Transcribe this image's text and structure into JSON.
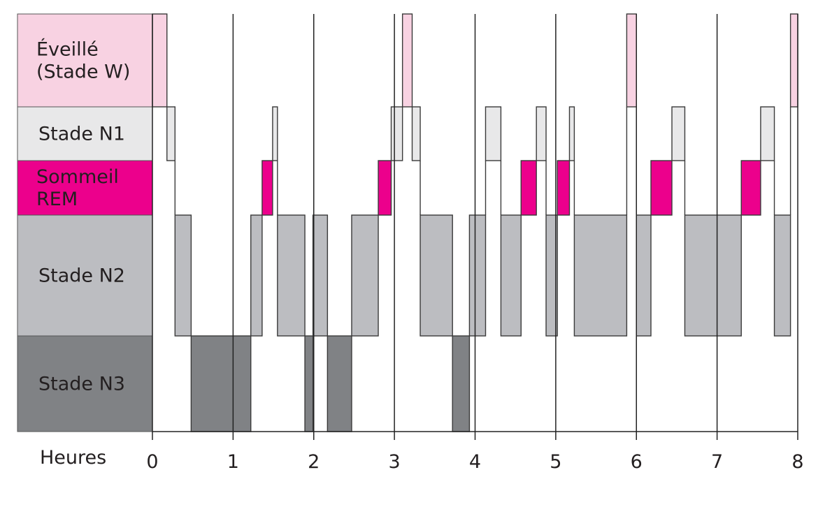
{
  "chart_data": {
    "type": "hypnogram",
    "xlabel": "Heures",
    "xlim": [
      0,
      8
    ],
    "x_ticks": [
      "0",
      "1",
      "2",
      "3",
      "4",
      "5",
      "6",
      "7",
      "8"
    ],
    "grid": "vertical lines at each hour",
    "stages": [
      {
        "id": "W",
        "label_lines": [
          "Éveillé",
          "(Stade W)"
        ],
        "color": "#f8d2e2"
      },
      {
        "id": "N1",
        "label_lines": [
          "Stade N1"
        ],
        "color": "#e8e8e9"
      },
      {
        "id": "REM",
        "label_lines": [
          "Sommeil",
          "REM"
        ],
        "color": "#ec008c"
      },
      {
        "id": "N2",
        "label_lines": [
          "Stade N2"
        ],
        "color": "#bcbdc1"
      },
      {
        "id": "N3",
        "label_lines": [
          "Stade N3"
        ],
        "color": "#808285"
      }
    ],
    "segments": [
      {
        "stage": "W",
        "start": 0.0,
        "end": 0.18
      },
      {
        "stage": "N1",
        "start": 0.18,
        "end": 0.28
      },
      {
        "stage": "N2",
        "start": 0.28,
        "end": 0.48
      },
      {
        "stage": "N3",
        "start": 0.48,
        "end": 1.22
      },
      {
        "stage": "N2",
        "start": 1.22,
        "end": 1.36
      },
      {
        "stage": "REM",
        "start": 1.36,
        "end": 1.49
      },
      {
        "stage": "N1",
        "start": 1.49,
        "end": 1.55
      },
      {
        "stage": "N2",
        "start": 1.55,
        "end": 1.89
      },
      {
        "stage": "N3",
        "start": 1.89,
        "end": 1.99
      },
      {
        "stage": "N2",
        "start": 1.99,
        "end": 2.17
      },
      {
        "stage": "N3",
        "start": 2.17,
        "end": 2.47
      },
      {
        "stage": "N2",
        "start": 2.47,
        "end": 2.8
      },
      {
        "stage": "REM",
        "start": 2.8,
        "end": 2.96
      },
      {
        "stage": "N1",
        "start": 2.96,
        "end": 3.1
      },
      {
        "stage": "W",
        "start": 3.1,
        "end": 3.22
      },
      {
        "stage": "N1",
        "start": 3.22,
        "end": 3.32
      },
      {
        "stage": "N2",
        "start": 3.32,
        "end": 3.72
      },
      {
        "stage": "N3",
        "start": 3.72,
        "end": 3.93
      },
      {
        "stage": "N2",
        "start": 3.93,
        "end": 4.13
      },
      {
        "stage": "N1",
        "start": 4.13,
        "end": 4.32
      },
      {
        "stage": "N2",
        "start": 4.32,
        "end": 4.57
      },
      {
        "stage": "REM",
        "start": 4.57,
        "end": 4.76
      },
      {
        "stage": "N1",
        "start": 4.76,
        "end": 4.88
      },
      {
        "stage": "N2",
        "start": 4.88,
        "end": 5.02
      },
      {
        "stage": "REM",
        "start": 5.02,
        "end": 5.17
      },
      {
        "stage": "N1",
        "start": 5.17,
        "end": 5.23
      },
      {
        "stage": "N2",
        "start": 5.23,
        "end": 5.88
      },
      {
        "stage": "W",
        "start": 5.88,
        "end": 6.0
      },
      {
        "stage": "N2",
        "start": 6.0,
        "end": 6.18
      },
      {
        "stage": "REM",
        "start": 6.18,
        "end": 6.44
      },
      {
        "stage": "N1",
        "start": 6.44,
        "end": 6.6
      },
      {
        "stage": "N2",
        "start": 6.6,
        "end": 7.3
      },
      {
        "stage": "REM",
        "start": 7.3,
        "end": 7.54
      },
      {
        "stage": "N1",
        "start": 7.54,
        "end": 7.71
      },
      {
        "stage": "N2",
        "start": 7.71,
        "end": 7.91
      },
      {
        "stage": "W",
        "start": 7.91,
        "end": 8.0
      }
    ]
  }
}
